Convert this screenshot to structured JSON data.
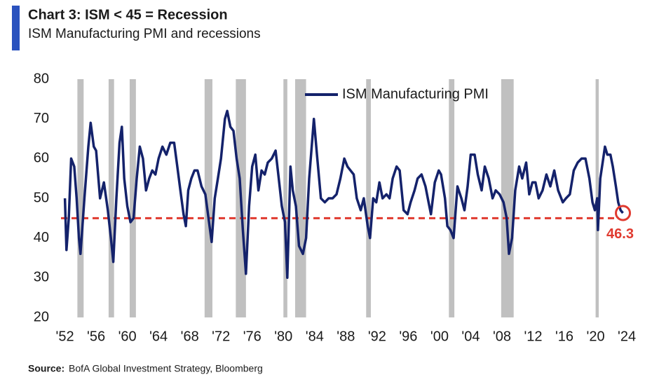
{
  "chart_data": {
    "type": "line",
    "title": "Chart 3: ISM < 45 = Recession",
    "subtitle": "ISM Manufacturing PMI and recessions",
    "source_label": "Source:",
    "source": "BofA Global Investment Strategy, Bloomberg",
    "legend": "top",
    "x": [
      1952.0,
      1952.2,
      1952.5,
      1952.8,
      1953.2,
      1953.5,
      1953.8,
      1954.0,
      1954.5,
      1955.0,
      1955.3,
      1955.7,
      1956.0,
      1956.5,
      1957.0,
      1957.5,
      1957.9,
      1958.2,
      1958.6,
      1959.0,
      1959.3,
      1959.6,
      1960.0,
      1960.4,
      1960.8,
      1961.2,
      1961.6,
      1962.0,
      1962.4,
      1962.8,
      1963.2,
      1963.6,
      1964.0,
      1964.5,
      1965.0,
      1965.5,
      1966.0,
      1966.4,
      1966.8,
      1967.2,
      1967.5,
      1967.8,
      1968.2,
      1968.6,
      1969.0,
      1969.5,
      1970.0,
      1970.4,
      1970.8,
      1971.2,
      1971.6,
      1972.0,
      1972.5,
      1972.8,
      1973.2,
      1973.6,
      1974.0,
      1974.4,
      1974.8,
      1975.2,
      1975.6,
      1976.0,
      1976.4,
      1976.8,
      1977.2,
      1977.6,
      1978.0,
      1978.5,
      1979.0,
      1979.4,
      1979.8,
      1980.2,
      1980.5,
      1980.9,
      1981.2,
      1981.6,
      1982.0,
      1982.5,
      1982.9,
      1983.3,
      1983.7,
      1983.9,
      1984.3,
      1984.8,
      1985.3,
      1985.8,
      1986.3,
      1986.8,
      1987.3,
      1987.8,
      1988.2,
      1988.6,
      1989.0,
      1989.4,
      1989.9,
      1990.3,
      1990.8,
      1991.1,
      1991.5,
      1991.9,
      1992.3,
      1992.7,
      1993.2,
      1993.6,
      1994.0,
      1994.5,
      1994.9,
      1995.4,
      1995.9,
      1996.3,
      1996.8,
      1997.2,
      1997.7,
      1998.2,
      1998.6,
      1998.9,
      1999.4,
      1999.9,
      2000.2,
      2000.7,
      2001.0,
      2001.4,
      2001.8,
      2002.3,
      2002.8,
      2003.2,
      2003.6,
      2004.0,
      2004.5,
      2004.9,
      2005.4,
      2005.8,
      2006.3,
      2006.8,
      2007.2,
      2007.7,
      2008.2,
      2008.6,
      2008.9,
      2009.3,
      2009.7,
      2010.2,
      2010.6,
      2011.1,
      2011.5,
      2011.9,
      2012.3,
      2012.7,
      2013.2,
      2013.7,
      2014.2,
      2014.7,
      2015.2,
      2015.8,
      2016.2,
      2016.7,
      2017.2,
      2017.7,
      2018.2,
      2018.7,
      2019.2,
      2019.6,
      2019.9,
      2020.2,
      2020.3,
      2020.6,
      2020.9,
      2021.2,
      2021.5,
      2021.9,
      2022.2,
      2022.6,
      2022.9,
      2023.2,
      2023.5
    ],
    "series": [
      {
        "name": "ISM Manufacturing PMI",
        "color": "#14226b",
        "values": [
          50,
          37,
          45,
          60,
          58,
          50,
          40,
          36,
          50,
          63,
          69,
          63,
          62,
          50,
          54,
          47,
          40,
          34,
          50,
          64,
          68,
          55,
          48,
          44,
          45,
          55,
          63,
          60,
          52,
          55,
          57,
          56,
          60,
          63,
          61,
          64,
          64,
          58,
          52,
          46,
          43,
          52,
          55,
          57,
          57,
          53,
          51,
          45,
          39,
          50,
          55,
          60,
          70,
          72,
          68,
          67,
          60,
          55,
          42,
          31,
          48,
          58,
          61,
          52,
          57,
          56,
          59,
          60,
          62,
          55,
          48,
          44,
          30,
          58,
          52,
          48,
          38,
          36,
          40,
          55,
          65,
          70,
          61,
          50,
          49,
          50,
          50,
          51,
          55,
          60,
          58,
          57,
          56,
          50,
          47,
          50,
          43,
          40,
          50,
          49,
          54,
          50,
          51,
          50,
          55,
          58,
          57,
          47,
          46,
          49,
          52,
          55,
          56,
          53,
          49,
          46,
          54,
          57,
          56,
          50,
          43,
          42,
          40,
          53,
          50,
          47,
          53,
          61,
          61,
          56,
          52,
          58,
          55,
          50,
          52,
          51,
          49,
          45,
          36,
          40,
          52,
          58,
          55,
          59,
          51,
          54,
          54,
          50,
          52,
          56,
          53,
          57,
          52,
          49,
          50,
          51,
          57,
          59,
          60,
          60,
          55,
          49,
          47,
          50,
          42,
          55,
          59,
          63,
          61,
          61,
          58,
          53,
          49,
          47,
          46.3
        ]
      }
    ],
    "recessions": [
      [
        1953.6,
        1954.4
      ],
      [
        1957.6,
        1958.3
      ],
      [
        1960.3,
        1961.1
      ],
      [
        1969.9,
        1970.9
      ],
      [
        1973.9,
        1975.2
      ],
      [
        1980.0,
        1980.5
      ],
      [
        1981.5,
        1982.9
      ],
      [
        1990.6,
        1991.2
      ],
      [
        2001.2,
        2001.9
      ],
      [
        2007.9,
        2009.5
      ],
      [
        2020.0,
        2020.4
      ]
    ],
    "recession_color": "#c0c0c0",
    "threshold": 45,
    "threshold_color": "#e03a2f",
    "annotation": "46.3",
    "xlim": [
      1951.5,
      2024.8
    ],
    "xticks": [
      {
        "value": 1952,
        "label": "'52"
      },
      {
        "value": 1956,
        "label": "'56"
      },
      {
        "value": 1960,
        "label": "'60"
      },
      {
        "value": 1964,
        "label": "'64"
      },
      {
        "value": 1968,
        "label": "'68"
      },
      {
        "value": 1972,
        "label": "'72"
      },
      {
        "value": 1976,
        "label": "'76"
      },
      {
        "value": 1980,
        "label": "'80"
      },
      {
        "value": 1984,
        "label": "'84"
      },
      {
        "value": 1988,
        "label": "'88"
      },
      {
        "value": 1992,
        "label": "'92"
      },
      {
        "value": 1996,
        "label": "'96"
      },
      {
        "value": 2000,
        "label": "'00"
      },
      {
        "value": 2004,
        "label": "'04"
      },
      {
        "value": 2008,
        "label": "'08"
      },
      {
        "value": 2012,
        "label": "'12"
      },
      {
        "value": 2016,
        "label": "'16"
      },
      {
        "value": 2020,
        "label": "'20"
      },
      {
        "value": 2024,
        "label": "'24"
      }
    ],
    "ylim": [
      20,
      80
    ],
    "yticks": [
      20,
      30,
      40,
      50,
      60,
      70,
      80
    ]
  }
}
